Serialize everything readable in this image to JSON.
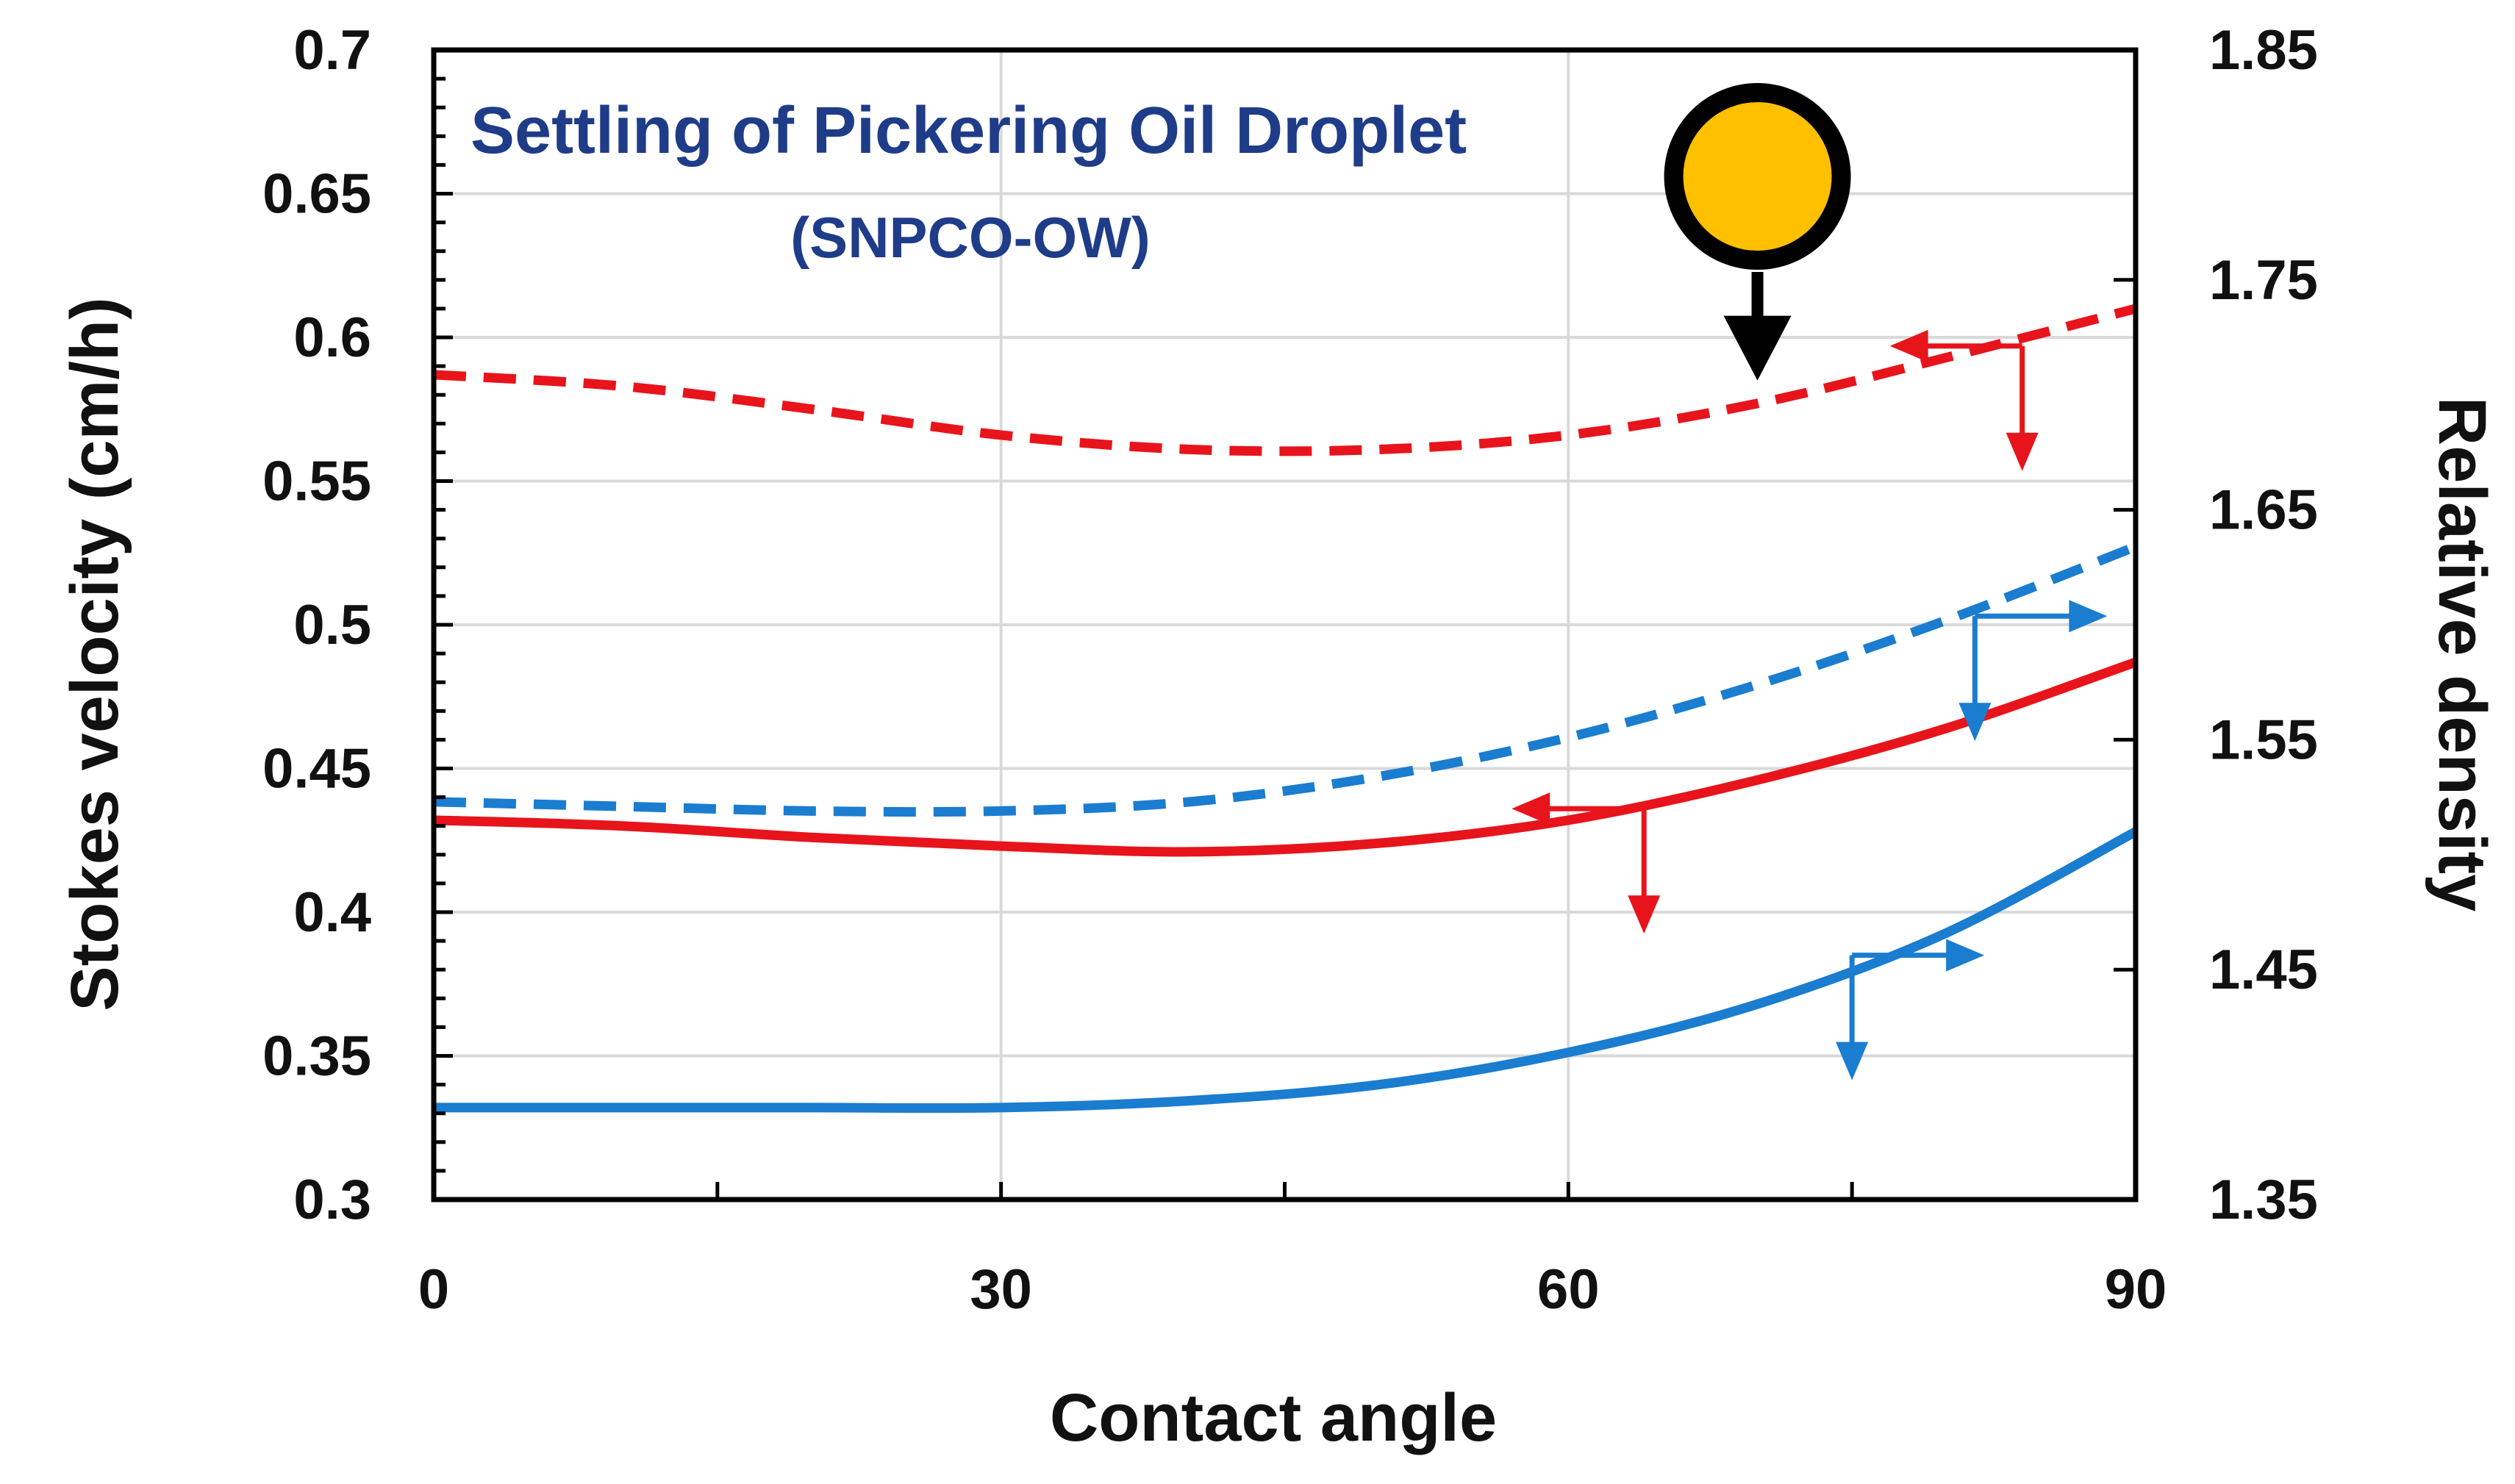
{
  "chart_data": {
    "type": "line",
    "title": "Settling of Pickering Oil Droplet",
    "subtitle": "(SNPCO-OW)",
    "xlabel": "Contact angle",
    "ylabel": "Stokes velocity (cm/h)",
    "y2label": "Relative density",
    "xlim": [
      0,
      90
    ],
    "ylim": [
      0.3,
      0.7
    ],
    "y2lim": [
      1.35,
      1.85
    ],
    "x_ticks": [
      "0",
      "30",
      "60",
      "90"
    ],
    "y_ticks": [
      "0.3",
      "0.35",
      "0.4",
      "0.45",
      "0.5",
      "0.55",
      "0.6",
      "0.65",
      "0.7"
    ],
    "y2_ticks": [
      "1.35",
      "1.45",
      "1.55",
      "1.65",
      "1.75",
      "1.85"
    ],
    "grid": true,
    "colors": {
      "red": "#e8141b",
      "blue": "#1a7dd0",
      "title": "#1f3c88",
      "droplet": "#ffc000",
      "axis": "#000000",
      "grid": "#d9d9d9"
    },
    "series": [
      {
        "name": "Stokes velocity (dashed red)",
        "color": "#e8141b",
        "style": "dashed",
        "axis": "left",
        "x": [
          0,
          10,
          20,
          30,
          40,
          50,
          60,
          70,
          80,
          90
        ],
        "values": [
          0.587,
          0.583,
          0.575,
          0.566,
          0.561,
          0.561,
          0.566,
          0.577,
          0.593,
          0.61
        ]
      },
      {
        "name": "Stokes velocity (solid red)",
        "color": "#e8141b",
        "style": "solid",
        "axis": "left",
        "x": [
          0,
          10,
          20,
          30,
          40,
          50,
          60,
          70,
          80,
          90
        ],
        "values": [
          0.432,
          0.43,
          0.426,
          0.423,
          0.421,
          0.424,
          0.432,
          0.446,
          0.464,
          0.487
        ]
      },
      {
        "name": "Relative density (dashed blue)",
        "color": "#1a7dd0",
        "style": "dashed",
        "axis": "right",
        "x": [
          0,
          10,
          20,
          30,
          40,
          50,
          60,
          70,
          80,
          90
        ],
        "values": [
          1.523,
          1.521,
          1.519,
          1.519,
          1.523,
          1.534,
          1.551,
          1.574,
          1.602,
          1.634
        ]
      },
      {
        "name": "Relative density (solid blue)",
        "color": "#1a7dd0",
        "style": "solid",
        "axis": "right",
        "x": [
          0,
          10,
          20,
          30,
          40,
          50,
          60,
          70,
          80,
          90
        ],
        "values": [
          1.39,
          1.39,
          1.39,
          1.39,
          1.393,
          1.4,
          1.414,
          1.435,
          1.466,
          1.51
        ]
      }
    ],
    "annotations": [
      {
        "type": "axis-arrow",
        "direction": "left",
        "color": "#e8141b",
        "x": 84,
        "y": 0.597
      },
      {
        "type": "axis-arrow",
        "direction": "left",
        "color": "#e8141b",
        "x": 64,
        "y": 0.436
      },
      {
        "type": "axis-arrow",
        "direction": "right",
        "color": "#1a7dd0",
        "x": 81.5,
        "y": 0.503
      },
      {
        "type": "axis-arrow",
        "direction": "right",
        "color": "#1a7dd0",
        "x": 75,
        "y": 0.385
      },
      {
        "type": "settling-droplet",
        "x": 70,
        "y": 0.656,
        "arrow_to_y": 0.585
      }
    ]
  }
}
